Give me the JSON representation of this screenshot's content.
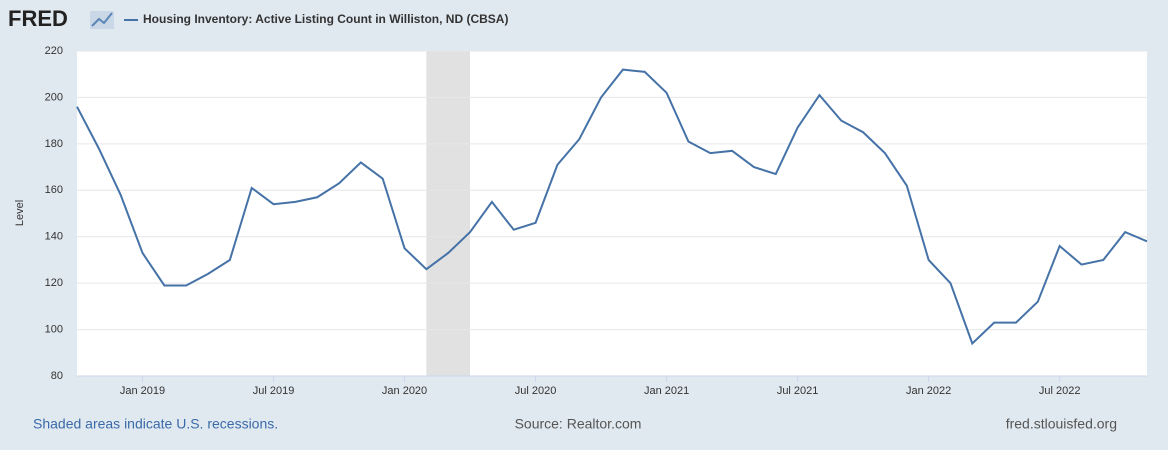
{
  "logo": "FRED",
  "chart_data": {
    "type": "line",
    "x_format": "month",
    "x": [
      "2018-10",
      "2018-11",
      "2018-12",
      "2019-01",
      "2019-02",
      "2019-03",
      "2019-04",
      "2019-05",
      "2019-06",
      "2019-07",
      "2019-08",
      "2019-09",
      "2019-10",
      "2019-11",
      "2019-12",
      "2020-01",
      "2020-02",
      "2020-03",
      "2020-04",
      "2020-05",
      "2020-06",
      "2020-07",
      "2020-08",
      "2020-09",
      "2020-10",
      "2020-11",
      "2020-12",
      "2021-01",
      "2021-02",
      "2021-03",
      "2021-04",
      "2021-05",
      "2021-06",
      "2021-07",
      "2021-08",
      "2021-09",
      "2021-10",
      "2021-11",
      "2021-12",
      "2022-01",
      "2022-02",
      "2022-03",
      "2022-04",
      "2022-05",
      "2022-06",
      "2022-07",
      "2022-08",
      "2022-09",
      "2022-10",
      "2022-11"
    ],
    "series": [
      {
        "name": "Housing Inventory: Active Listing Count in Williston, ND (CBSA)",
        "color": "#4572a7",
        "values": [
          196,
          178,
          158,
          133,
          119,
          119,
          124,
          130,
          161,
          154,
          155,
          157,
          163,
          172,
          165,
          135,
          126,
          133,
          142,
          155,
          143,
          146,
          171,
          182,
          200,
          212,
          211,
          202,
          181,
          176,
          177,
          170,
          167,
          187,
          201,
          190,
          185,
          176,
          162,
          130,
          120,
          94,
          103,
          103,
          112,
          136,
          128,
          130,
          142,
          138
        ]
      }
    ],
    "xlim": [
      "2018-10",
      "2022-11"
    ],
    "xticks": [
      {
        "value": "2019-01",
        "label": "Jan 2019"
      },
      {
        "value": "2019-07",
        "label": "Jul 2019"
      },
      {
        "value": "2020-01",
        "label": "Jan 2020"
      },
      {
        "value": "2020-07",
        "label": "Jul 2020"
      },
      {
        "value": "2021-01",
        "label": "Jan 2021"
      },
      {
        "value": "2021-07",
        "label": "Jul 2021"
      },
      {
        "value": "2022-01",
        "label": "Jan 2022"
      },
      {
        "value": "2022-07",
        "label": "Jul 2022"
      }
    ],
    "ylim": [
      80,
      220
    ],
    "yticks": [
      80,
      100,
      120,
      140,
      160,
      180,
      200,
      220
    ],
    "ylabel": "Level",
    "grid": true,
    "recessions": [
      {
        "start": "2020-02",
        "end": "2020-04"
      }
    ],
    "recession_color": "#e1e1e1"
  },
  "footer": {
    "left": "Shaded areas indicate U.S. recessions.",
    "center": "Source: Realtor.com",
    "right": "fred.stlouisfed.org"
  }
}
